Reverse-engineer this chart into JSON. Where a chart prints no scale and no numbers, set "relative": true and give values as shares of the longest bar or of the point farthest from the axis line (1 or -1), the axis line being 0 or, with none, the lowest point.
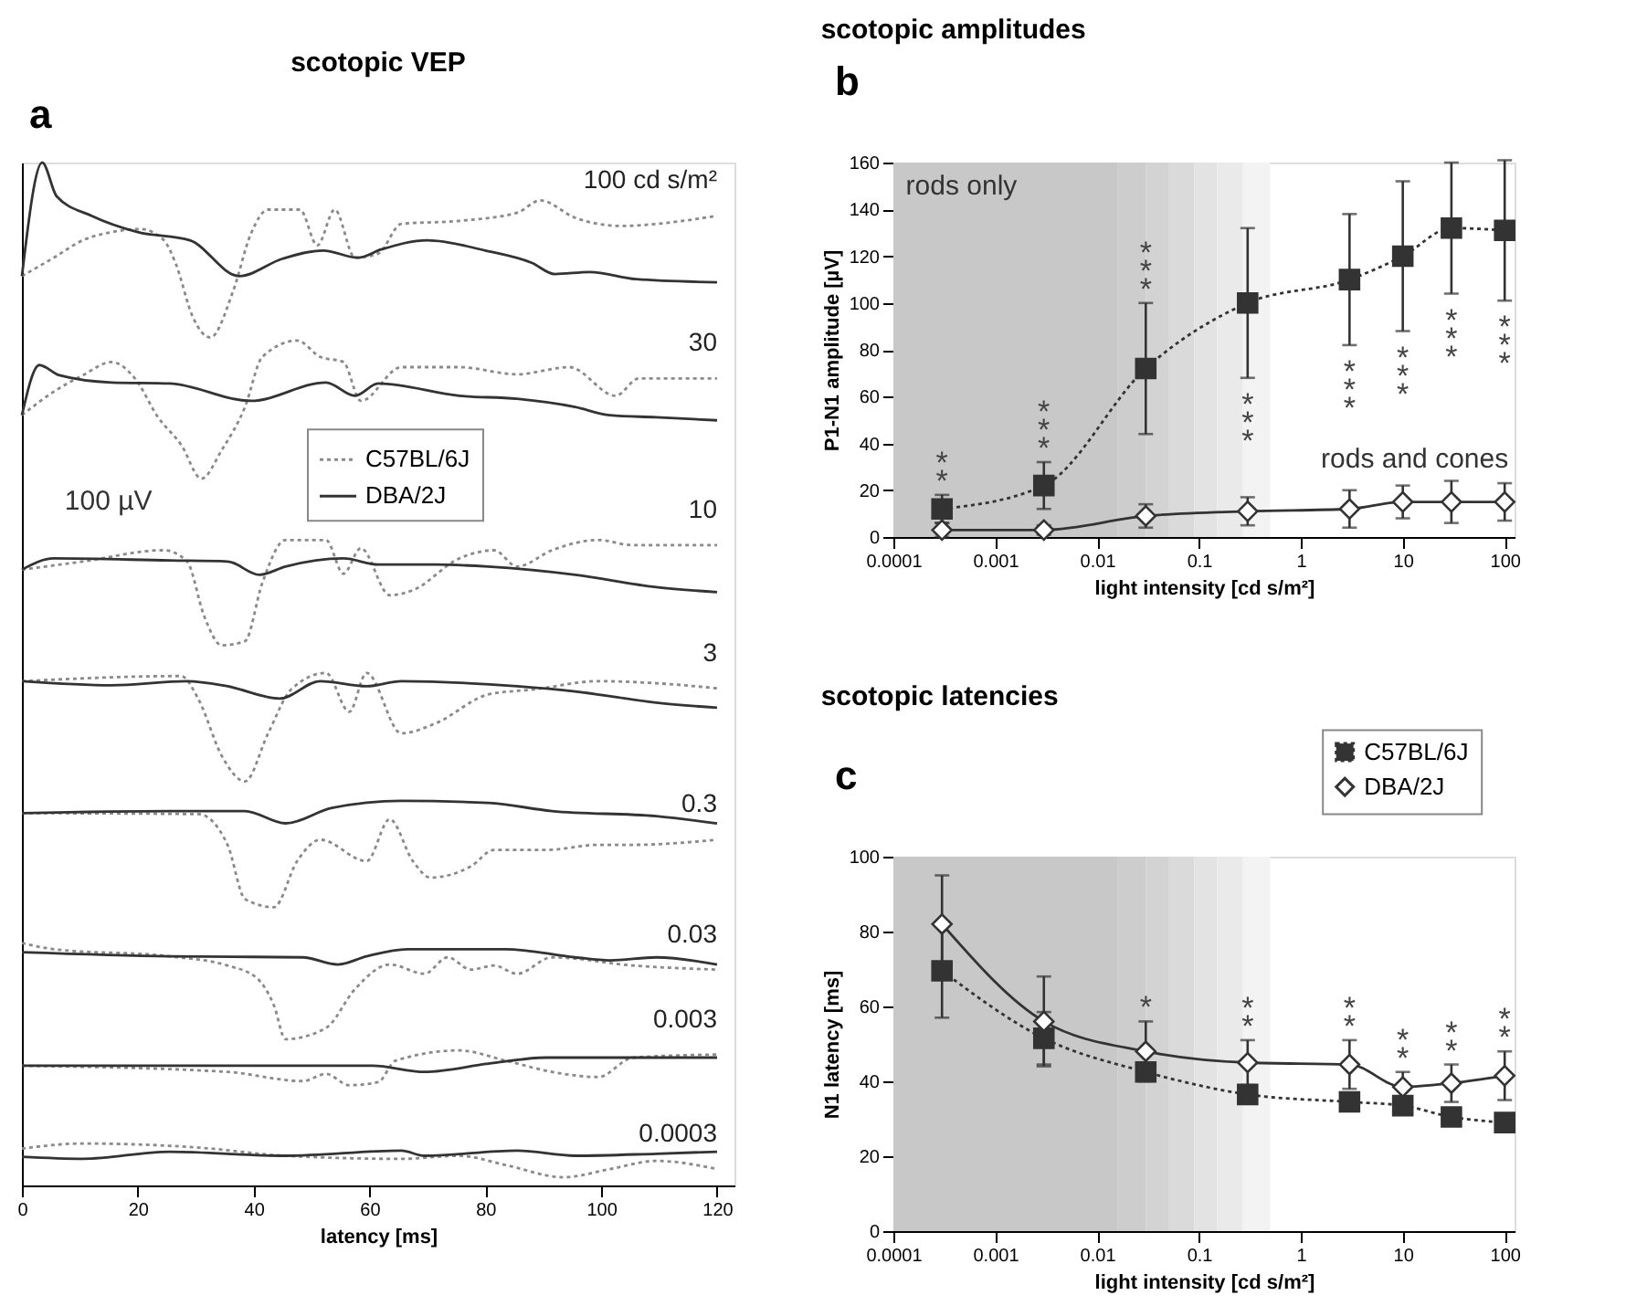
{
  "chart_data": [
    {
      "type": "line",
      "title": "scotopic VEP",
      "xlabel": "latency [ms]",
      "relative": true,
      "xlim": [
        0,
        123
      ],
      "xticks": [
        0,
        20,
        40,
        60,
        80,
        100,
        120
      ],
      "legend": "top",
      "annotations": [
        "a",
        "100 µV",
        {
          "text": "100 cd s/m²",
          "x": 120,
          "y": 0.948
        },
        {
          "text": "30",
          "x": 120,
          "y": 0.789
        },
        {
          "text": "10",
          "x": 120,
          "y": 0.626
        },
        {
          "text": "3",
          "x": 120,
          "y": 0.486
        },
        {
          "text": "0.3",
          "x": 120,
          "y": 0.338
        },
        {
          "text": "0.03",
          "x": 120,
          "y": 0.211
        },
        {
          "text": "0.003",
          "x": 120,
          "y": 0.128
        },
        {
          "text": "0.0003",
          "x": 120,
          "y": 0.016
        }
      ],
      "series": [
        {
          "name": "C57BL/6J",
          "color": "#8a8a8a",
          "line_style": "dotted",
          "x": [
            0,
            5.5,
            10.5,
            15.5,
            20.5,
            24.5,
            26.5,
            29.5,
            32.5,
            36.5,
            39.5,
            42.5,
            48,
            51,
            54,
            57.5,
            61.5,
            65.5,
            75.5,
            85.5,
            89.5,
            95.5,
            103.5,
            109.5,
            120
          ],
          "values": [
            0.889,
            0.907,
            0.924,
            0.932,
            0.935,
            0.924,
            0.902,
            0.849,
            0.829,
            0.875,
            0.93,
            0.954,
            0.954,
            0.919,
            0.954,
            0.907,
            0.911,
            0.94,
            0.943,
            0.951,
            0.963,
            0.946,
            0.938,
            0.94,
            0.948
          ]
        },
        {
          "name": "DBA/2J",
          "color": "#333333",
          "line_style": "solid",
          "x": [
            0,
            3.5,
            6,
            12,
            20,
            29,
            37.5,
            45,
            52,
            58,
            62,
            70,
            80,
            88,
            92,
            98,
            106,
            120
          ],
          "values": [
            0.889,
            1.0,
            0.967,
            0.948,
            0.932,
            0.924,
            0.889,
            0.906,
            0.914,
            0.907,
            0.915,
            0.924,
            0.914,
            0.902,
            0.891,
            0.893,
            0.886,
            0.883
          ]
        },
        {
          "color": "#8a8a8a",
          "line_style": "dotted",
          "x": [
            0,
            5.5,
            10.5,
            15.5,
            19.5,
            23.5,
            27.5,
            31,
            34.5,
            38.5,
            41.5,
            47.5,
            51.5,
            55.5,
            58.5,
            65.5,
            75.5,
            85.5,
            94.5,
            102.5,
            106.5,
            120
          ],
          "values": [
            0.753,
            0.776,
            0.792,
            0.805,
            0.789,
            0.751,
            0.724,
            0.691,
            0.719,
            0.761,
            0.81,
            0.826,
            0.81,
            0.805,
            0.767,
            0.8,
            0.8,
            0.793,
            0.8,
            0.772,
            0.789,
            0.789
          ]
        },
        {
          "color": "#333333",
          "line_style": "solid",
          "x": [
            0,
            3,
            6.5,
            15.5,
            25.5,
            39.5,
            52.5,
            57.5,
            61.5,
            75.5,
            85.5,
            95.5,
            101.5,
            109.5,
            120
          ],
          "values": [
            0.753,
            0.802,
            0.792,
            0.785,
            0.784,
            0.767,
            0.785,
            0.772,
            0.784,
            0.772,
            0.769,
            0.761,
            0.753,
            0.751,
            0.748
          ]
        },
        {
          "color": "#8a8a8a",
          "line_style": "dotted",
          "x": [
            0,
            10.5,
            24.5,
            28.5,
            31.5,
            34.5,
            38.5,
            41.5,
            45.5,
            52.5,
            55.5,
            58.5,
            63.5,
            67.5,
            75.5,
            81.5,
            85.5,
            91.5,
            99.5,
            105.5,
            120
          ],
          "values": [
            0.602,
            0.61,
            0.621,
            0.61,
            0.556,
            0.528,
            0.532,
            0.589,
            0.631,
            0.631,
            0.598,
            0.623,
            0.577,
            0.582,
            0.613,
            0.621,
            0.605,
            0.621,
            0.631,
            0.626,
            0.626
          ]
        },
        {
          "color": "#333333",
          "line_style": "solid",
          "x": [
            0,
            5.5,
            25.5,
            35.5,
            41,
            45.5,
            55.5,
            61.5,
            71.5,
            80.5,
            95.5,
            109.5,
            120
          ],
          "values": [
            0.602,
            0.613,
            0.611,
            0.61,
            0.597,
            0.605,
            0.613,
            0.607,
            0.607,
            0.605,
            0.597,
            0.585,
            0.58
          ]
        },
        {
          "color": "#8a8a8a",
          "line_style": "dotted",
          "x": [
            0,
            27.5,
            30.5,
            34.5,
            38.5,
            42.5,
            46.5,
            52.5,
            56.5,
            59.5,
            65.5,
            71.5,
            80.5,
            88.5,
            99.5,
            109.5,
            120
          ],
          "values": [
            0.493,
            0.498,
            0.475,
            0.42,
            0.395,
            0.442,
            0.485,
            0.501,
            0.463,
            0.501,
            0.442,
            0.452,
            0.48,
            0.485,
            0.493,
            0.491,
            0.486
          ]
        },
        {
          "color": "#333333",
          "line_style": "solid",
          "x": [
            0,
            15.5,
            28.5,
            35.5,
            44.5,
            51.5,
            59.5,
            65.5,
            85.5,
            95.5,
            109.5,
            120
          ],
          "values": [
            0.493,
            0.489,
            0.493,
            0.488,
            0.476,
            0.493,
            0.488,
            0.493,
            0.488,
            0.483,
            0.472,
            0.467
          ]
        },
        {
          "color": "#8a8a8a",
          "line_style": "dotted",
          "x": [
            0,
            30.5,
            35.5,
            38.5,
            43.5,
            47.5,
            51.5,
            59.5,
            63.5,
            67.5,
            70.5,
            77.5,
            81.5,
            90.5,
            99.5,
            105.5,
            120
          ],
          "values": [
            0.364,
            0.363,
            0.333,
            0.28,
            0.272,
            0.317,
            0.338,
            0.317,
            0.358,
            0.317,
            0.301,
            0.312,
            0.328,
            0.328,
            0.333,
            0.333,
            0.338
          ]
        },
        {
          "color": "#333333",
          "line_style": "solid",
          "x": [
            0,
            25.5,
            38.5,
            45.5,
            53.5,
            65.5,
            80.5,
            91.5,
            109.5,
            120
          ],
          "values": [
            0.364,
            0.366,
            0.366,
            0.354,
            0.369,
            0.376,
            0.374,
            0.366,
            0.361,
            0.354
          ]
        },
        {
          "color": "#8a8a8a",
          "line_style": "dotted",
          "x": [
            0,
            5.5,
            25.5,
            35.5,
            40.5,
            43.5,
            45.5,
            52.5,
            57.5,
            63.5,
            69.5,
            73.5,
            77.5,
            81.5,
            85.5,
            91.5,
            105.5,
            120
          ],
          "values": [
            0.237,
            0.231,
            0.224,
            0.215,
            0.203,
            0.176,
            0.143,
            0.154,
            0.192,
            0.216,
            0.207,
            0.223,
            0.211,
            0.215,
            0.207,
            0.223,
            0.215,
            0.211
          ]
        },
        {
          "color": "#333333",
          "line_style": "solid",
          "x": [
            0,
            25.5,
            48.5,
            54.5,
            59.5,
            66.5,
            83.5,
            95.5,
            101.5,
            109.5,
            120
          ],
          "values": [
            0.228,
            0.224,
            0.223,
            0.216,
            0.224,
            0.231,
            0.231,
            0.223,
            0.22,
            0.223,
            0.216
          ]
        },
        {
          "color": "#8a8a8a",
          "line_style": "dotted",
          "x": [
            0,
            35.5,
            48.5,
            52.5,
            56.5,
            61.5,
            64.5,
            75.5,
            83.5,
            91.5,
            99.5,
            105.5,
            120
          ],
          "values": [
            0.117,
            0.111,
            0.102,
            0.109,
            0.098,
            0.101,
            0.122,
            0.132,
            0.122,
            0.111,
            0.106,
            0.125,
            0.128
          ]
        },
        {
          "color": "#333333",
          "line_style": "solid",
          "x": [
            0,
            25.5,
            60.5,
            69.5,
            80.5,
            90.5,
            109.5,
            120
          ],
          "values": [
            0.117,
            0.117,
            0.117,
            0.111,
            0.119,
            0.125,
            0.125,
            0.125
          ]
        },
        {
          "color": "#8a8a8a",
          "line_style": "dotted",
          "x": [
            0,
            10.5,
            30.5,
            45.5,
            65.5,
            75.5,
            83.5,
            93.5,
            101.5,
            109.5,
            120
          ],
          "values": [
            0.036,
            0.041,
            0.037,
            0.029,
            0.026,
            0.029,
            0.02,
            0.008,
            0.016,
            0.024,
            0.016
          ]
        },
        {
          "color": "#333333",
          "line_style": "solid",
          "x": [
            0,
            10.5,
            25.5,
            45.5,
            65.5,
            69.5,
            85.5,
            95.5,
            109.5,
            120
          ],
          "values": [
            0.028,
            0.026,
            0.033,
            0.029,
            0.034,
            0.029,
            0.034,
            0.029,
            0.031,
            0.033
          ]
        }
      ]
    },
    {
      "type": "line",
      "title": "scotopic amplitudes",
      "xlabel": "light intensity [cd s/m²]",
      "ylabel": "P1-N1 amplitude [µV]",
      "log": "x",
      "xlim": [
        0.0001,
        125
      ],
      "xticks": [
        0.0001,
        0.001,
        0.01,
        0.1,
        1,
        10,
        100
      ],
      "ylim": [
        0,
        160
      ],
      "yticks": [
        0,
        20,
        40,
        60,
        80,
        100,
        120,
        140,
        160
      ],
      "x": [
        0.0003,
        0.003,
        0.03,
        0.3,
        3,
        10,
        30,
        100
      ],
      "bands": [
        {
          "axis": "x",
          "from": 0.0001,
          "to": 0.016,
          "color": "#c8c8c8"
        },
        {
          "axis": "x",
          "from": 0.016,
          "to": 0.03,
          "color": "#cdcdcd"
        },
        {
          "axis": "x",
          "from": 0.03,
          "to": 0.05,
          "color": "#d3d3d3"
        },
        {
          "axis": "x",
          "from": 0.05,
          "to": 0.09,
          "color": "#dadada"
        },
        {
          "axis": "x",
          "from": 0.09,
          "to": 0.15,
          "color": "#e3e3e3"
        },
        {
          "axis": "x",
          "from": 0.15,
          "to": 0.27,
          "color": "#eaeaea"
        },
        {
          "axis": "x",
          "from": 0.27,
          "to": 0.5,
          "color": "#f3f3f3"
        }
      ],
      "annotations": [
        "b",
        "rods only",
        "rods and cones",
        {
          "text": "**",
          "x": 0.0003,
          "y": 12
        },
        {
          "text": "***",
          "x": 0.003,
          "y": 22
        },
        {
          "text": "***",
          "x": 0.03,
          "y": 72
        },
        {
          "text": "***",
          "x": 0.3,
          "y": 68
        },
        {
          "text": "***",
          "x": 3,
          "y": 82
        },
        {
          "text": "***",
          "x": 10,
          "y": 88
        },
        {
          "text": "***",
          "x": 30,
          "y": 104
        },
        {
          "text": "***",
          "x": 100,
          "y": 101
        }
      ],
      "series": [
        {
          "color": "#333333",
          "line_style": "dotted",
          "marker": "square",
          "values": [
            12,
            22,
            72,
            100,
            110,
            120,
            132,
            131
          ],
          "errors": [
            6,
            10,
            28,
            32,
            28,
            32,
            28,
            30
          ]
        },
        {
          "color": "#333333",
          "line_style": "solid",
          "marker": "diamond",
          "values": [
            3,
            3,
            9,
            11,
            12,
            15,
            15,
            15
          ],
          "errors": [
            3,
            2,
            5,
            6,
            8,
            7,
            9,
            8
          ]
        }
      ]
    },
    {
      "type": "line",
      "title": "scotopic latencies",
      "xlabel": "light intensity [cd s/m²]",
      "ylabel": "N1 latency [ms]",
      "log": "x",
      "xlim": [
        0.0001,
        125
      ],
      "xticks": [
        0.0001,
        0.001,
        0.01,
        0.1,
        1,
        10,
        100
      ],
      "ylim": [
        0,
        100
      ],
      "yticks": [
        0,
        20,
        40,
        60,
        80,
        100
      ],
      "legend": "top right",
      "x": [
        0.0003,
        0.003,
        0.03,
        0.3,
        3,
        10,
        30,
        100
      ],
      "bands": [
        {
          "axis": "x",
          "from": 0.0001,
          "to": 0.016,
          "color": "#c8c8c8"
        },
        {
          "axis": "x",
          "from": 0.016,
          "to": 0.03,
          "color": "#cdcdcd"
        },
        {
          "axis": "x",
          "from": 0.03,
          "to": 0.05,
          "color": "#d3d3d3"
        },
        {
          "axis": "x",
          "from": 0.05,
          "to": 0.09,
          "color": "#dadada"
        },
        {
          "axis": "x",
          "from": 0.09,
          "to": 0.15,
          "color": "#e3e3e3"
        },
        {
          "axis": "x",
          "from": 0.15,
          "to": 0.27,
          "color": "#eaeaea"
        },
        {
          "axis": "x",
          "from": 0.27,
          "to": 0.5,
          "color": "#f3f3f3"
        }
      ],
      "annotations": [
        "c",
        {
          "text": "*",
          "x": 0.03,
          "y": 48
        },
        {
          "text": "**",
          "x": 0.3,
          "y": 45
        },
        {
          "text": "**",
          "x": 3,
          "y": 44.5
        },
        {
          "text": "**",
          "x": 10,
          "y": 38.5
        },
        {
          "text": "**",
          "x": 30,
          "y": 39.5
        },
        {
          "text": "**",
          "x": 100,
          "y": 41.5
        }
      ],
      "series": [
        {
          "name": "C57BL/6J",
          "color": "#333333",
          "line_style": "dotted",
          "marker": "square",
          "values": [
            69.5,
            51.5,
            42.5,
            36.5,
            34.5,
            33.5,
            30.5,
            29
          ],
          "errors": [
            12.5,
            7,
            2,
            2,
            2,
            1.5,
            1.5,
            1.5
          ]
        },
        {
          "name": "DBA/2J",
          "color": "#333333",
          "line_style": "solid",
          "marker": "diamond",
          "values": [
            82,
            56,
            48,
            45,
            44.5,
            38.5,
            39.5,
            41.5
          ],
          "errors": [
            13,
            12,
            8,
            6,
            6.5,
            4,
            5,
            6.5
          ]
        }
      ]
    }
  ]
}
